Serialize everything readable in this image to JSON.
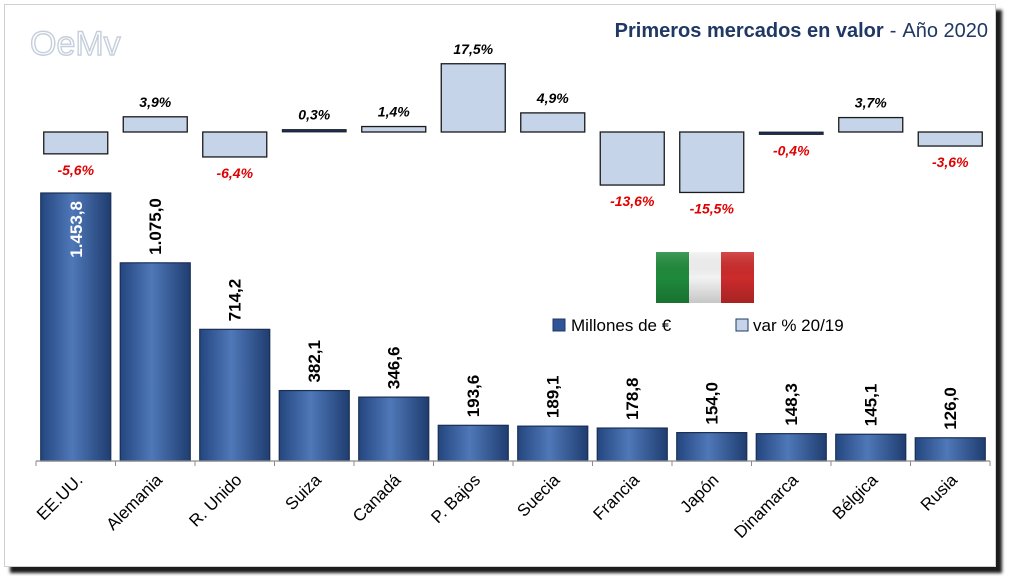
{
  "chart_data": {
    "type": "bar",
    "title": "Primeros mercados en valor",
    "subtitle": "Año 2020",
    "logo_text": "OeMv",
    "categories": [
      "EE.UU.",
      "Alemania",
      "R. Unido",
      "Suiza",
      "Canadá",
      "P. Bajos",
      "Suecia",
      "Francia",
      "Japón",
      "Dinamarca",
      "Bélgica",
      "Rusia"
    ],
    "series": [
      {
        "name": "Millones de €",
        "values": [
          1453.8,
          1075.0,
          714.2,
          382.1,
          346.6,
          193.6,
          189.1,
          178.8,
          154.0,
          148.3,
          145.1,
          126.0
        ],
        "labels": [
          "1.453,8",
          "1.075,0",
          "714,2",
          "382,1",
          "346,6",
          "193,6",
          "189,1",
          "178,8",
          "154,0",
          "148,3",
          "145,1",
          "126,0"
        ],
        "color": "#2f5597"
      },
      {
        "name": "var % 20/19",
        "values": [
          -5.6,
          3.9,
          -6.4,
          0.3,
          1.4,
          17.5,
          4.9,
          -13.6,
          -15.5,
          -0.4,
          3.7,
          -3.6
        ],
        "labels": [
          "-5,6%",
          "3,9%",
          "-6,4%",
          "0,3%",
          "1,4%",
          "17,5%",
          "4,9%",
          "-13,6%",
          "-15,5%",
          "-0,4%",
          "3,7%",
          "-3,6%"
        ],
        "color": "#c6d4ea"
      }
    ],
    "legend": "center-right",
    "highlight_flag": "italy-flag",
    "colors": {
      "bar_fill": "#2f5597",
      "var_fill": "#c6d4ea",
      "positive_label": "#000000",
      "negative_label": "#e00000",
      "title": "#1f3864"
    }
  }
}
